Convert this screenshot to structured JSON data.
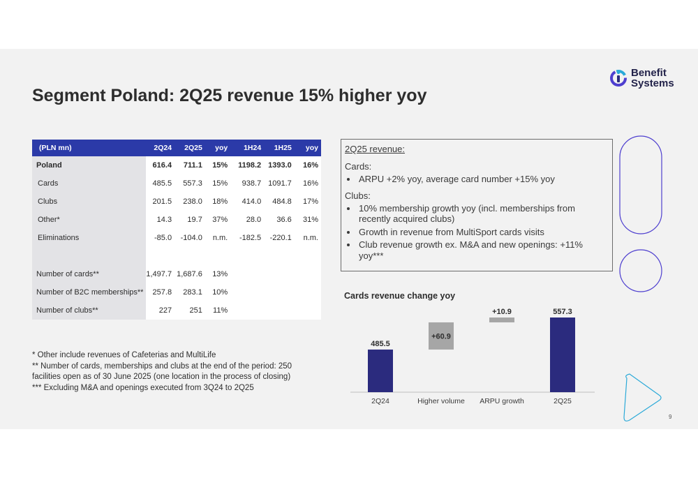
{
  "title": "Segment Poland: 2Q25 revenue 15% higher yoy",
  "logo": {
    "line1": "Benefit",
    "line2": "Systems"
  },
  "table": {
    "header": [
      "(PLN mn)",
      "2Q24",
      "2Q25",
      "yoy",
      "1H24",
      "1H25",
      "yoy"
    ],
    "rows": [
      [
        "Poland",
        "616.4",
        "711.1",
        "15%",
        "1198.2",
        "1393.0",
        "16%"
      ],
      [
        "Cards",
        "485.5",
        "557.3",
        "15%",
        "938.7",
        "1091.7",
        "16%"
      ],
      [
        "Clubs",
        "201.5",
        "238.0",
        "18%",
        "414.0",
        "484.8",
        "17%"
      ],
      [
        "Other*",
        "14.3",
        "19.7",
        "37%",
        "28.0",
        "36.6",
        "31%"
      ],
      [
        "Eliminations",
        "-85.0",
        "-104.0",
        "n.m.",
        "-182.5",
        "-220.1",
        "n.m."
      ]
    ],
    "kpis": [
      [
        "Number of cards**",
        "1,497.7",
        "1,687.6",
        "13%"
      ],
      [
        "Number of B2C memberships**",
        "257.8",
        "283.1",
        "10%"
      ],
      [
        "Number of clubs**",
        "227",
        "251",
        "11%"
      ]
    ]
  },
  "notes": [
    "* Other include revenues of Cafeterias and MultiLife",
    "** Number of cards, memberships and clubs at the end of the period: 250 facilities open as of 30 June 2025 (one location in the process of closing)",
    "*** Excluding M&A and openings executed from 3Q24 to 2Q25"
  ],
  "box": {
    "heading": "2Q25 revenue:",
    "cards_label": "Cards:",
    "cards_bullets": [
      "ARPU +2% yoy, average card number +15% yoy"
    ],
    "clubs_label": "Clubs:",
    "clubs_bullets": [
      "10% membership growth yoy (incl. memberships from recently acquired clubs)",
      "Growth in revenue from MultiSport cards visits",
      "Club revenue growth ex. M&A and new openings: +11% yoy***"
    ]
  },
  "colors": {
    "navy": "#2b2b7e",
    "bridge": "#a6a6a6",
    "table_header": "#2b3aa8",
    "accent_outline": "#4e3fcf",
    "accent_cyan": "#2aa9d8"
  },
  "chart_data": {
    "type": "bar",
    "subtype": "waterfall",
    "title": "Cards revenue change yoy",
    "categories": [
      "2Q24",
      "Higher volume",
      "ARPU growth",
      "2Q25"
    ],
    "values": [
      485.5,
      60.9,
      10.9,
      557.3
    ],
    "labels": [
      "485.5",
      "+60.9",
      "+10.9",
      "557.3"
    ],
    "kinds": [
      "total",
      "delta",
      "delta",
      "total"
    ]
  },
  "page_number": "9"
}
